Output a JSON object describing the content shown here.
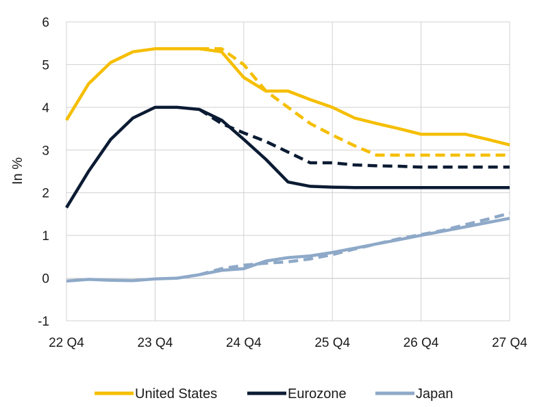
{
  "chart_data": {
    "type": "line",
    "title": "",
    "xlabel": "",
    "ylabel": "In %",
    "ylim": [
      -1,
      6
    ],
    "yticks": [
      "-1",
      "0",
      "1",
      "2",
      "3",
      "4",
      "5",
      "6"
    ],
    "xticks": [
      "22 Q4",
      "23 Q4",
      "24 Q4",
      "25 Q4",
      "26 Q4",
      "27 Q4"
    ],
    "grid": "horizontal",
    "legend_position": "bottom",
    "x_unit": "quarters since 22 Q4",
    "series": [
      {
        "name": "United States",
        "color": "#F5BE00",
        "style": "solid",
        "points": [
          [
            0,
            3.7
          ],
          [
            1,
            4.55
          ],
          [
            2,
            5.05
          ],
          [
            3,
            5.3
          ],
          [
            4,
            5.37
          ],
          [
            5,
            5.37
          ],
          [
            6,
            5.37
          ],
          [
            7,
            5.3
          ],
          [
            8,
            4.7
          ],
          [
            9,
            4.38
          ],
          [
            10,
            4.38
          ],
          [
            11,
            4.18
          ],
          [
            12,
            4.0
          ],
          [
            13,
            3.75
          ],
          [
            14,
            3.62
          ],
          [
            15,
            3.5
          ],
          [
            16,
            3.37
          ],
          [
            17,
            3.37
          ],
          [
            18,
            3.37
          ],
          [
            19,
            3.25
          ],
          [
            20,
            3.12
          ]
        ]
      },
      {
        "name": "United States",
        "color": "#F5BE00",
        "style": "dashed",
        "points": [
          [
            6,
            5.37
          ],
          [
            7,
            5.37
          ],
          [
            8,
            5.0
          ],
          [
            9,
            4.38
          ],
          [
            10,
            4.0
          ],
          [
            11,
            3.62
          ],
          [
            12,
            3.35
          ],
          [
            13,
            3.1
          ],
          [
            14,
            2.88
          ],
          [
            15,
            2.88
          ],
          [
            16,
            2.88
          ],
          [
            17,
            2.88
          ],
          [
            18,
            2.88
          ],
          [
            19,
            2.88
          ],
          [
            20,
            2.88
          ]
        ]
      },
      {
        "name": "Eurozone",
        "color": "#0B1B33",
        "style": "solid",
        "points": [
          [
            0,
            1.65
          ],
          [
            1,
            2.5
          ],
          [
            2,
            3.25
          ],
          [
            3,
            3.75
          ],
          [
            4,
            4.0
          ],
          [
            5,
            4.0
          ],
          [
            6,
            3.95
          ],
          [
            7,
            3.7
          ],
          [
            8,
            3.25
          ],
          [
            9,
            2.78
          ],
          [
            10,
            2.25
          ],
          [
            11,
            2.15
          ],
          [
            12,
            2.13
          ],
          [
            13,
            2.12
          ],
          [
            14,
            2.12
          ],
          [
            15,
            2.12
          ],
          [
            16,
            2.12
          ],
          [
            17,
            2.12
          ],
          [
            18,
            2.12
          ],
          [
            19,
            2.12
          ],
          [
            20,
            2.12
          ]
        ]
      },
      {
        "name": "Eurozone",
        "color": "#0B1B33",
        "style": "dashed",
        "points": [
          [
            6,
            3.95
          ],
          [
            7,
            3.62
          ],
          [
            8,
            3.4
          ],
          [
            9,
            3.2
          ],
          [
            10,
            2.95
          ],
          [
            11,
            2.7
          ],
          [
            12,
            2.7
          ],
          [
            13,
            2.65
          ],
          [
            14,
            2.63
          ],
          [
            15,
            2.62
          ],
          [
            16,
            2.6
          ],
          [
            17,
            2.6
          ],
          [
            18,
            2.6
          ],
          [
            19,
            2.6
          ],
          [
            20,
            2.6
          ]
        ]
      },
      {
        "name": "Japan",
        "color": "#8EA9C8",
        "style": "solid",
        "points": [
          [
            0,
            -0.07
          ],
          [
            1,
            -0.03
          ],
          [
            2,
            -0.05
          ],
          [
            3,
            -0.06
          ],
          [
            4,
            -0.02
          ],
          [
            5,
            0.0
          ],
          [
            6,
            0.08
          ],
          [
            7,
            0.18
          ],
          [
            8,
            0.22
          ],
          [
            9,
            0.4
          ],
          [
            10,
            0.48
          ],
          [
            11,
            0.52
          ],
          [
            12,
            0.6
          ],
          [
            13,
            0.7
          ],
          [
            14,
            0.8
          ],
          [
            15,
            0.9
          ],
          [
            16,
            1.0
          ],
          [
            17,
            1.1
          ],
          [
            18,
            1.2
          ],
          [
            19,
            1.3
          ],
          [
            20,
            1.4
          ]
        ]
      },
      {
        "name": "Japan",
        "color": "#8EA9C8",
        "style": "dashed",
        "points": [
          [
            6,
            0.08
          ],
          [
            7,
            0.22
          ],
          [
            8,
            0.3
          ],
          [
            9,
            0.35
          ],
          [
            10,
            0.38
          ],
          [
            11,
            0.45
          ],
          [
            12,
            0.55
          ],
          [
            13,
            0.68
          ],
          [
            14,
            0.8
          ],
          [
            15,
            0.92
          ],
          [
            16,
            1.02
          ],
          [
            17,
            1.12
          ],
          [
            18,
            1.25
          ],
          [
            19,
            1.38
          ],
          [
            20,
            1.52
          ]
        ]
      }
    ],
    "legend": [
      {
        "name": "United States",
        "color": "#F5BE00"
      },
      {
        "name": "Eurozone",
        "color": "#0B1B33"
      },
      {
        "name": "Japan",
        "color": "#8EA9C8"
      }
    ]
  }
}
